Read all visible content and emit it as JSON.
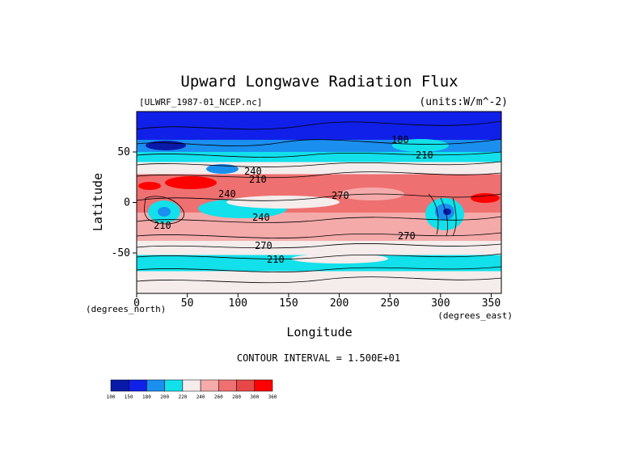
{
  "chart_data": {
    "type": "heatmap",
    "title": "Upward Longwave Radiation Flux",
    "file_label": "[ULWRF_1987-01_NCEP.nc]",
    "units_label": "(units:W/m^-2)",
    "xlabel": "Longitude",
    "ylabel": "Latitude",
    "x_unit_label": "(degrees_east)",
    "y_unit_label": "(degrees_north)",
    "xlim": [
      0,
      360
    ],
    "ylim": [
      -90,
      90
    ],
    "x_ticks": [
      "0",
      "50",
      "100",
      "150",
      "200",
      "250",
      "300",
      "350"
    ],
    "y_ticks": [
      "50",
      "0",
      "-50"
    ],
    "contour_interval_text": "CONTOUR INTERVAL = 1.500E+01",
    "contour_labels": [
      "240",
      "210",
      "240",
      "270",
      "240",
      "210",
      "270",
      "180",
      "210",
      "270",
      "210"
    ],
    "colorbar": {
      "levels": [
        "100",
        "150",
        "180",
        "200",
        "220",
        "240",
        "260",
        "280",
        "300",
        "360"
      ],
      "colors": [
        "#0a1aa8",
        "#1020e8",
        "#1a8ff0",
        "#12e0ea",
        "#f5ecec",
        "#f5aaaa",
        "#ef7070",
        "#e84848",
        "#ff0000"
      ]
    },
    "approximate_zonal_bands": [
      {
        "lat_from": 90,
        "lat_to": 62,
        "value": 160
      },
      {
        "lat_from": 62,
        "lat_to": 50,
        "value": 195
      },
      {
        "lat_from": 50,
        "lat_to": 40,
        "value": 215
      },
      {
        "lat_from": 40,
        "lat_to": 28,
        "value": 235
      },
      {
        "lat_from": 28,
        "lat_to": -10,
        "value": 275
      },
      {
        "lat_from": -10,
        "lat_to": -38,
        "value": 255
      },
      {
        "lat_from": -38,
        "lat_to": -52,
        "value": 230
      },
      {
        "lat_from": -52,
        "lat_to": -68,
        "value": 205
      },
      {
        "lat_from": -68,
        "lat_to": -90,
        "value": 225
      }
    ]
  }
}
